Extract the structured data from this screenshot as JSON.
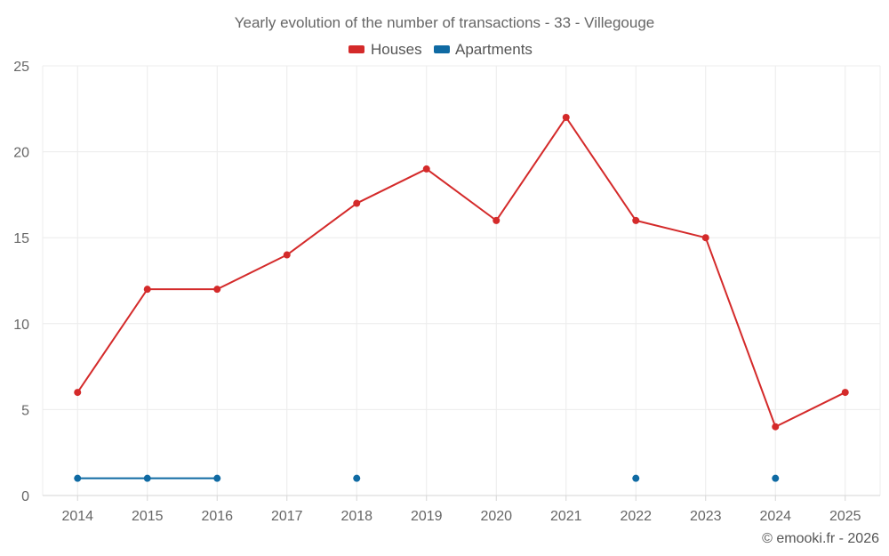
{
  "chart_data": {
    "type": "line",
    "title": "Yearly evolution of the number of transactions - 33 - Villegouge",
    "categories": [
      "2014",
      "2015",
      "2016",
      "2017",
      "2018",
      "2019",
      "2020",
      "2021",
      "2022",
      "2023",
      "2024",
      "2025"
    ],
    "series": [
      {
        "name": "Houses",
        "color": "#d42a2a",
        "values": [
          6,
          12,
          12,
          14,
          17,
          19,
          16,
          22,
          16,
          15,
          4,
          6
        ]
      },
      {
        "name": "Apartments",
        "color": "#0f6aa3",
        "values": [
          1,
          1,
          1,
          null,
          1,
          null,
          null,
          null,
          1,
          null,
          1,
          null
        ]
      }
    ],
    "ylim": [
      0,
      25
    ],
    "yticks": [
      "0",
      "5",
      "10",
      "15",
      "20",
      "25"
    ],
    "xlabel": "",
    "ylabel": "",
    "grid": true,
    "legend_position": "top-center"
  },
  "credit": "© emooki.fr - 2026"
}
